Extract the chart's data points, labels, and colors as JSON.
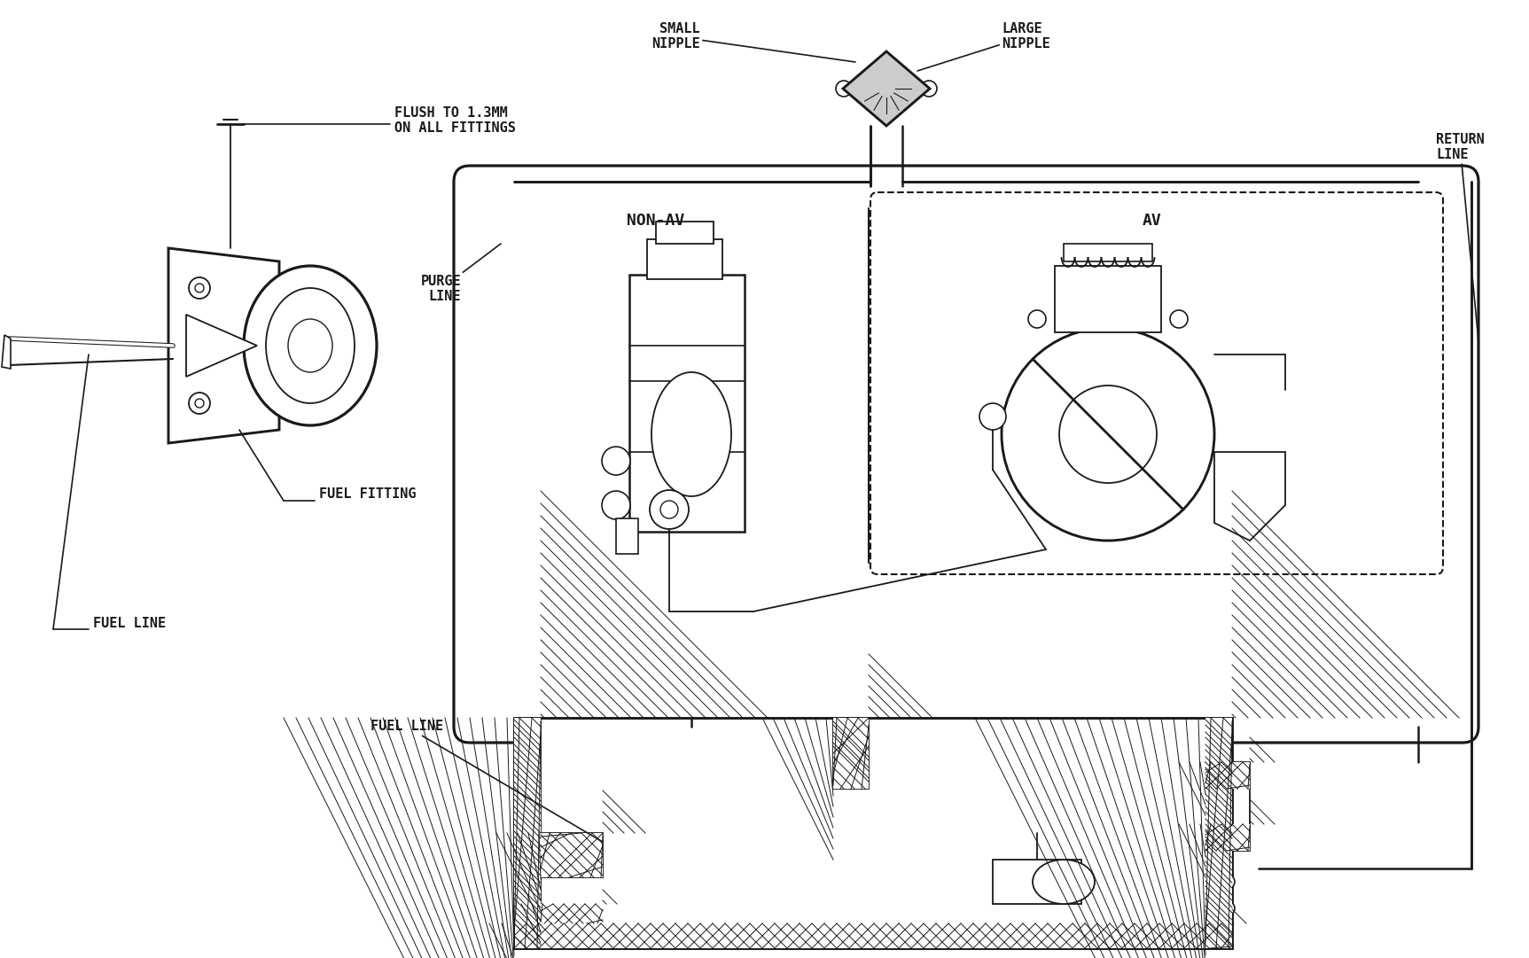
{
  "bg_color": "#ffffff",
  "line_color": "#1a1a1a",
  "labels": {
    "flush": "FLUSH TO 1.3MM\nON ALL FITTINGS",
    "purge_line": "PURGE\nLINE",
    "fuel_fitting": "FUEL FITTING",
    "fuel_line_left": "FUEL LINE",
    "small_nipple": "SMALL\nNIPPLE",
    "large_nipple": "LARGE\nNIPPLE",
    "return_line": "RETURN\nLINE",
    "non_av": "NON-AV",
    "av": "AV",
    "fuel_line_bottom": "FUEL LINE"
  },
  "font_size": 11,
  "lw": 1.8,
  "figw": 17.25,
  "figh": 10.81,
  "dpi": 100
}
